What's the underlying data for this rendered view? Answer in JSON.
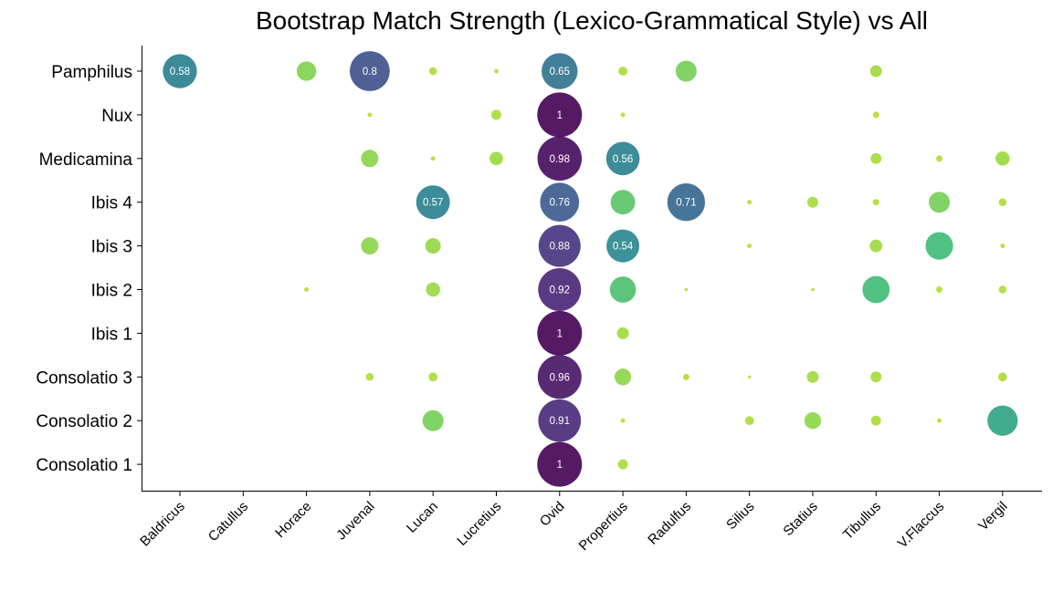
{
  "chart_data": {
    "type": "scatter",
    "title": "Bootstrap Match Strength (Lexico-Grammatical Style) vs All",
    "xlabel": "",
    "ylabel": "",
    "x_categories": [
      "Baldricus",
      "Catullus",
      "Horace",
      "Juvenal",
      "Lucan",
      "Lucretius",
      "Ovid",
      "Propertius",
      "Radulfus",
      "Silius",
      "Statius",
      "Tibullus",
      "V.Flaccus",
      "Vergil"
    ],
    "y_categories": [
      "Pamphilus",
      "Nux",
      "Medicamina",
      "Ibis 4",
      "Ibis 3",
      "Ibis 2",
      "Ibis 1",
      "Consolatio 3",
      "Consolatio 2",
      "Consolatio 1"
    ],
    "label_threshold": 0.5,
    "grid": false,
    "legend": "none",
    "points": [
      {
        "y": "Pamphilus",
        "x": "Baldricus",
        "v": 0.58
      },
      {
        "y": "Pamphilus",
        "x": "Horace",
        "v": 0.19
      },
      {
        "y": "Pamphilus",
        "x": "Juvenal",
        "v": 0.8
      },
      {
        "y": "Pamphilus",
        "x": "Lucan",
        "v": 0.03
      },
      {
        "y": "Pamphilus",
        "x": "Lucretius",
        "v": 0.01
      },
      {
        "y": "Pamphilus",
        "x": "Ovid",
        "v": 0.65
      },
      {
        "y": "Pamphilus",
        "x": "Propertius",
        "v": 0.04
      },
      {
        "y": "Pamphilus",
        "x": "Radulfus",
        "v": 0.22
      },
      {
        "y": "Pamphilus",
        "x": "Tibullus",
        "v": 0.07
      },
      {
        "y": "Nux",
        "x": "Juvenal",
        "v": 0.01
      },
      {
        "y": "Nux",
        "x": "Lucretius",
        "v": 0.05
      },
      {
        "y": "Nux",
        "x": "Ovid",
        "v": 1
      },
      {
        "y": "Nux",
        "x": "Propertius",
        "v": 0.01
      },
      {
        "y": "Nux",
        "x": "Tibullus",
        "v": 0.02
      },
      {
        "y": "Medicamina",
        "x": "Juvenal",
        "v": 0.15
      },
      {
        "y": "Medicamina",
        "x": "Lucan",
        "v": 0.01
      },
      {
        "y": "Medicamina",
        "x": "Lucretius",
        "v": 0.09
      },
      {
        "y": "Medicamina",
        "x": "Ovid",
        "v": 0.98
      },
      {
        "y": "Medicamina",
        "x": "Propertius",
        "v": 0.56
      },
      {
        "y": "Medicamina",
        "x": "Tibullus",
        "v": 0.06
      },
      {
        "y": "Medicamina",
        "x": "V.Flaccus",
        "v": 0.02
      },
      {
        "y": "Medicamina",
        "x": "Vergil",
        "v": 0.1
      },
      {
        "y": "Ibis 4",
        "x": "Lucan",
        "v": 0.57
      },
      {
        "y": "Ibis 4",
        "x": "Ovid",
        "v": 0.76
      },
      {
        "y": "Ibis 4",
        "x": "Propertius",
        "v": 0.3
      },
      {
        "y": "Ibis 4",
        "x": "Radulfus",
        "v": 0.71
      },
      {
        "y": "Ibis 4",
        "x": "Silius",
        "v": 0.01
      },
      {
        "y": "Ibis 4",
        "x": "Statius",
        "v": 0.06
      },
      {
        "y": "Ibis 4",
        "x": "Tibullus",
        "v": 0.02
      },
      {
        "y": "Ibis 4",
        "x": "V.Flaccus",
        "v": 0.22
      },
      {
        "y": "Ibis 4",
        "x": "Vergil",
        "v": 0.03
      },
      {
        "y": "Ibis 3",
        "x": "Juvenal",
        "v": 0.15
      },
      {
        "y": "Ibis 3",
        "x": "Lucan",
        "v": 0.12
      },
      {
        "y": "Ibis 3",
        "x": "Ovid",
        "v": 0.88
      },
      {
        "y": "Ibis 3",
        "x": "Propertius",
        "v": 0.54
      },
      {
        "y": "Ibis 3",
        "x": "Silius",
        "v": 0.01
      },
      {
        "y": "Ibis 3",
        "x": "Tibullus",
        "v": 0.08
      },
      {
        "y": "Ibis 3",
        "x": "V.Flaccus",
        "v": 0.38
      },
      {
        "y": "Ibis 3",
        "x": "Vergil",
        "v": 0.01
      },
      {
        "y": "Ibis 2",
        "x": "Horace",
        "v": 0.01
      },
      {
        "y": "Ibis 2",
        "x": "Lucan",
        "v": 0.1
      },
      {
        "y": "Ibis 2",
        "x": "Ovid",
        "v": 0.92
      },
      {
        "y": "Ibis 2",
        "x": "Propertius",
        "v": 0.34
      },
      {
        "y": "Ibis 2",
        "x": "Radulfus",
        "v": 0.005
      },
      {
        "y": "Ibis 2",
        "x": "Statius",
        "v": 0.005
      },
      {
        "y": "Ibis 2",
        "x": "Tibullus",
        "v": 0.37
      },
      {
        "y": "Ibis 2",
        "x": "V.Flaccus",
        "v": 0.02
      },
      {
        "y": "Ibis 2",
        "x": "Vergil",
        "v": 0.03
      },
      {
        "y": "Ibis 1",
        "x": "Ovid",
        "v": 1
      },
      {
        "y": "Ibis 1",
        "x": "Propertius",
        "v": 0.07
      },
      {
        "y": "Consolatio 3",
        "x": "Juvenal",
        "v": 0.03
      },
      {
        "y": "Consolatio 3",
        "x": "Lucan",
        "v": 0.04
      },
      {
        "y": "Consolatio 3",
        "x": "Ovid",
        "v": 0.96
      },
      {
        "y": "Consolatio 3",
        "x": "Propertius",
        "v": 0.14
      },
      {
        "y": "Consolatio 3",
        "x": "Radulfus",
        "v": 0.02
      },
      {
        "y": "Consolatio 3",
        "x": "Silius",
        "v": 0.005
      },
      {
        "y": "Consolatio 3",
        "x": "Statius",
        "v": 0.07
      },
      {
        "y": "Consolatio 3",
        "x": "Tibullus",
        "v": 0.06
      },
      {
        "y": "Consolatio 3",
        "x": "Vergil",
        "v": 0.04
      },
      {
        "y": "Consolatio 2",
        "x": "Lucan",
        "v": 0.22
      },
      {
        "y": "Consolatio 2",
        "x": "Ovid",
        "v": 0.91
      },
      {
        "y": "Consolatio 2",
        "x": "Propertius",
        "v": 0.01
      },
      {
        "y": "Consolatio 2",
        "x": "Silius",
        "v": 0.04
      },
      {
        "y": "Consolatio 2",
        "x": "Statius",
        "v": 0.14
      },
      {
        "y": "Consolatio 2",
        "x": "Tibullus",
        "v": 0.05
      },
      {
        "y": "Consolatio 2",
        "x": "V.Flaccus",
        "v": 0.01
      },
      {
        "y": "Consolatio 2",
        "x": "Vergil",
        "v": 0.46
      },
      {
        "y": "Consolatio 1",
        "x": "Ovid",
        "v": 1
      },
      {
        "y": "Consolatio 1",
        "x": "Propertius",
        "v": 0.05
      }
    ]
  }
}
